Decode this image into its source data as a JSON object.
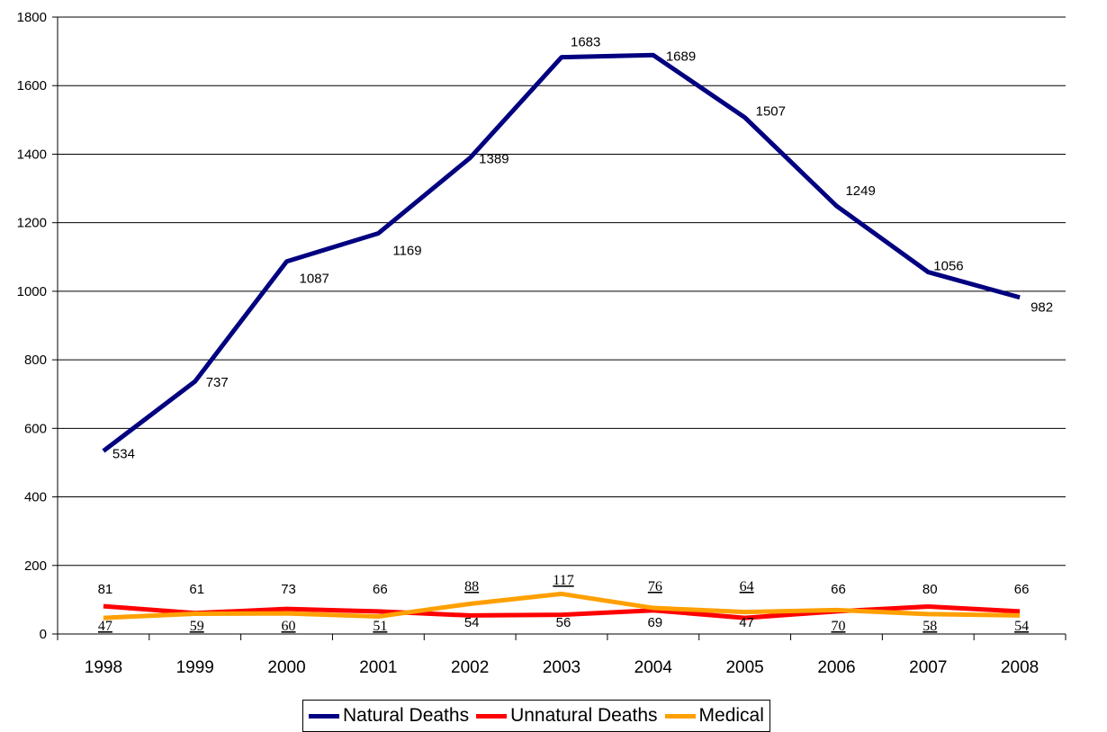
{
  "chart_data": {
    "type": "line",
    "title": "",
    "xlabel": "",
    "ylabel": "",
    "categories": [
      "1998",
      "1999",
      "2000",
      "2001",
      "2002",
      "2003",
      "2004",
      "2005",
      "2006",
      "2007",
      "2008"
    ],
    "ylim": [
      0,
      1800
    ],
    "yticks": [
      0,
      200,
      400,
      600,
      800,
      1000,
      1200,
      1400,
      1600,
      1800
    ],
    "grid": "horizontal",
    "legend_position": "bottom",
    "series": [
      {
        "name": "Natural Deaths",
        "color": "#000080",
        "values": [
          534,
          737,
          1087,
          1169,
          1389,
          1683,
          1689,
          1507,
          1249,
          1056,
          982
        ]
      },
      {
        "name": "Unnatural Deaths",
        "color": "#ff0000",
        "values": [
          81,
          61,
          73,
          66,
          54,
          56,
          69,
          47,
          66,
          80,
          66
        ]
      },
      {
        "name": "Medical",
        "color": "#ffa000",
        "values": [
          47,
          59,
          60,
          51,
          88,
          117,
          76,
          64,
          70,
          58,
          54
        ]
      }
    ]
  }
}
